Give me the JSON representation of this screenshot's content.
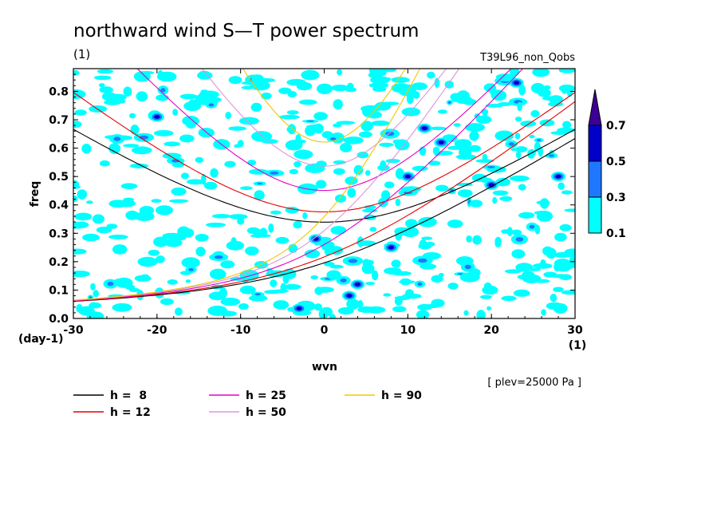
{
  "chart_data": {
    "type": "heatmap",
    "title": "northward wind S—T power spectrum",
    "title_unit": "(1)",
    "run_label": "T39L96_non_Qobs",
    "xlabel": "wvn",
    "xunit": "(1)",
    "ylabel": "freq",
    "yunit": "(day-1)",
    "xlim": [
      -30,
      30
    ],
    "ylim": [
      0,
      0.88
    ],
    "xticks": [
      "-30",
      "-20",
      "-10",
      "0",
      "10",
      "20",
      "30"
    ],
    "yticks": [
      "0.0",
      "0.1",
      "0.2",
      "0.3",
      "0.4",
      "0.5",
      "0.6",
      "0.7",
      "0.8"
    ],
    "plev_note": "[ plev=25000 Pa ]",
    "colorbar": {
      "levels": [
        "0.1",
        "0.3",
        "0.5",
        "0.7"
      ],
      "colors": [
        "#00ffff",
        "#1e78ff",
        "#0000c8",
        "#3c0096"
      ]
    },
    "curve_legend": [
      {
        "label": "h =  8",
        "h": 8,
        "color": "#000000"
      },
      {
        "label": "h = 12",
        "h": 12,
        "color": "#e60000"
      },
      {
        "label": "h = 25",
        "h": 25,
        "color": "#e600c8"
      },
      {
        "label": "h = 50",
        "h": 50,
        "color": "#dc96dc"
      },
      {
        "label": "h = 90",
        "h": 90,
        "color": "#f0c800"
      }
    ],
    "hot_spots": [
      {
        "x": 4,
        "y": 0.12,
        "level": 3
      },
      {
        "x": 3,
        "y": 0.08,
        "level": 2
      },
      {
        "x": -3,
        "y": 0.035,
        "level": 2
      },
      {
        "x": -1,
        "y": 0.28,
        "level": 2
      },
      {
        "x": 8,
        "y": 0.25,
        "level": 2
      },
      {
        "x": 12,
        "y": 0.67,
        "level": 2
      },
      {
        "x": 20,
        "y": 0.47,
        "level": 2
      },
      {
        "x": 23,
        "y": 0.83,
        "level": 2
      },
      {
        "x": -20,
        "y": 0.71,
        "level": 2
      },
      {
        "x": 14,
        "y": 0.62,
        "level": 2
      },
      {
        "x": 28,
        "y": 0.5,
        "level": 2
      },
      {
        "x": 10,
        "y": 0.5,
        "level": 2
      }
    ]
  }
}
